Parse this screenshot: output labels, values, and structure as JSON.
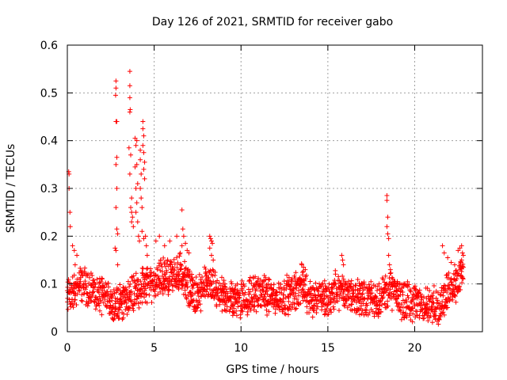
{
  "chart_data": {
    "type": "scatter",
    "title": "Day 126 of 2021, SRMTID for receiver gabo",
    "xlabel": "GPS time / hours",
    "ylabel": "SRMTID / TECUs",
    "xlim": [
      0,
      23.9
    ],
    "ylim": [
      0,
      0.6
    ],
    "x_ticks": [
      0,
      5,
      10,
      15,
      20
    ],
    "y_ticks": [
      0,
      0.1,
      0.2,
      0.3,
      0.4,
      0.5,
      0.6
    ],
    "x_tick_labels": [
      "0",
      "5",
      "10",
      "15",
      "20"
    ],
    "y_tick_labels": [
      "0",
      "0.1",
      "0.2",
      "0.3",
      "0.4",
      "0.5",
      "0.6"
    ],
    "grid": true,
    "marker": "plus",
    "color": "#ff0000",
    "series": [
      {
        "name": "SRMTID",
        "baseline_profile": {
          "x": [
            0,
            0.5,
            1,
            2,
            3,
            3.5,
            4,
            4.5,
            5,
            5.5,
            6,
            6.5,
            7,
            7.5,
            8,
            9,
            10,
            11,
            12,
            13,
            13.5,
            14,
            15,
            15.5,
            16,
            17,
            18,
            18.5,
            19,
            20,
            21,
            21.5,
            22,
            22.8
          ],
          "y": [
            0.07,
            0.09,
            0.1,
            0.07,
            0.06,
            0.07,
            0.09,
            0.1,
            0.1,
            0.12,
            0.11,
            0.13,
            0.09,
            0.07,
            0.1,
            0.07,
            0.07,
            0.08,
            0.07,
            0.08,
            0.1,
            0.07,
            0.07,
            0.09,
            0.08,
            0.07,
            0.07,
            0.09,
            0.07,
            0.06,
            0.05,
            0.06,
            0.09,
            0.12
          ]
        },
        "spikes": [
          {
            "x": 0.08,
            "y": 0.335
          },
          {
            "x": 0.1,
            "y": 0.33
          },
          {
            "x": 0.1,
            "y": 0.3
          },
          {
            "x": 0.15,
            "y": 0.25
          },
          {
            "x": 0.17,
            "y": 0.22
          },
          {
            "x": 0.3,
            "y": 0.18
          },
          {
            "x": 0.4,
            "y": 0.17
          },
          {
            "x": 0.55,
            "y": 0.16
          },
          {
            "x": 0.45,
            "y": 0.14
          },
          {
            "x": 2.8,
            "y": 0.525
          },
          {
            "x": 2.8,
            "y": 0.51
          },
          {
            "x": 2.78,
            "y": 0.495
          },
          {
            "x": 2.8,
            "y": 0.44
          },
          {
            "x": 2.85,
            "y": 0.44
          },
          {
            "x": 2.85,
            "y": 0.365
          },
          {
            "x": 2.8,
            "y": 0.35
          },
          {
            "x": 2.85,
            "y": 0.3
          },
          {
            "x": 2.8,
            "y": 0.26
          },
          {
            "x": 2.85,
            "y": 0.215
          },
          {
            "x": 2.9,
            "y": 0.205
          },
          {
            "x": 2.75,
            "y": 0.175
          },
          {
            "x": 2.8,
            "y": 0.17
          },
          {
            "x": 2.9,
            "y": 0.14
          },
          {
            "x": 3.6,
            "y": 0.545
          },
          {
            "x": 3.6,
            "y": 0.515
          },
          {
            "x": 3.6,
            "y": 0.49
          },
          {
            "x": 3.62,
            "y": 0.465
          },
          {
            "x": 3.6,
            "y": 0.46
          },
          {
            "x": 3.55,
            "y": 0.385
          },
          {
            "x": 3.65,
            "y": 0.37
          },
          {
            "x": 3.6,
            "y": 0.33
          },
          {
            "x": 3.7,
            "y": 0.28
          },
          {
            "x": 3.65,
            "y": 0.26
          },
          {
            "x": 3.7,
            "y": 0.25
          },
          {
            "x": 3.75,
            "y": 0.24
          },
          {
            "x": 3.7,
            "y": 0.23
          },
          {
            "x": 3.8,
            "y": 0.22
          },
          {
            "x": 3.9,
            "y": 0.405
          },
          {
            "x": 3.95,
            "y": 0.39
          },
          {
            "x": 4.0,
            "y": 0.4
          },
          {
            "x": 3.9,
            "y": 0.345
          },
          {
            "x": 4.0,
            "y": 0.35
          },
          {
            "x": 3.95,
            "y": 0.3
          },
          {
            "x": 4.05,
            "y": 0.31
          },
          {
            "x": 4.0,
            "y": 0.27
          },
          {
            "x": 3.95,
            "y": 0.25
          },
          {
            "x": 4.05,
            "y": 0.23
          },
          {
            "x": 4.1,
            "y": 0.2
          },
          {
            "x": 4.15,
            "y": 0.19
          },
          {
            "x": 4.2,
            "y": 0.38
          },
          {
            "x": 4.2,
            "y": 0.36
          },
          {
            "x": 4.25,
            "y": 0.33
          },
          {
            "x": 4.2,
            "y": 0.3
          },
          {
            "x": 4.25,
            "y": 0.28
          },
          {
            "x": 4.3,
            "y": 0.26
          },
          {
            "x": 4.35,
            "y": 0.44
          },
          {
            "x": 4.35,
            "y": 0.425
          },
          {
            "x": 4.4,
            "y": 0.41
          },
          {
            "x": 4.35,
            "y": 0.39
          },
          {
            "x": 4.4,
            "y": 0.375
          },
          {
            "x": 4.45,
            "y": 0.355
          },
          {
            "x": 4.4,
            "y": 0.34
          },
          {
            "x": 4.45,
            "y": 0.32
          },
          {
            "x": 4.5,
            "y": 0.2
          },
          {
            "x": 4.55,
            "y": 0.18
          },
          {
            "x": 4.6,
            "y": 0.16
          },
          {
            "x": 4.3,
            "y": 0.21
          },
          {
            "x": 4.4,
            "y": 0.195
          },
          {
            "x": 5.1,
            "y": 0.19
          },
          {
            "x": 5.3,
            "y": 0.2
          },
          {
            "x": 5.6,
            "y": 0.18
          },
          {
            "x": 5.9,
            "y": 0.19
          },
          {
            "x": 6.3,
            "y": 0.2
          },
          {
            "x": 6.6,
            "y": 0.255
          },
          {
            "x": 6.65,
            "y": 0.215
          },
          {
            "x": 6.7,
            "y": 0.2
          },
          {
            "x": 6.8,
            "y": 0.185
          },
          {
            "x": 6.6,
            "y": 0.18
          },
          {
            "x": 6.9,
            "y": 0.17
          },
          {
            "x": 7.0,
            "y": 0.165
          },
          {
            "x": 8.2,
            "y": 0.2
          },
          {
            "x": 8.25,
            "y": 0.195
          },
          {
            "x": 8.3,
            "y": 0.19
          },
          {
            "x": 8.35,
            "y": 0.185
          },
          {
            "x": 8.2,
            "y": 0.175
          },
          {
            "x": 8.3,
            "y": 0.16
          },
          {
            "x": 8.4,
            "y": 0.15
          },
          {
            "x": 13.5,
            "y": 0.14
          },
          {
            "x": 13.6,
            "y": 0.135
          },
          {
            "x": 13.7,
            "y": 0.13
          },
          {
            "x": 15.8,
            "y": 0.16
          },
          {
            "x": 15.85,
            "y": 0.15
          },
          {
            "x": 15.9,
            "y": 0.14
          },
          {
            "x": 18.4,
            "y": 0.285
          },
          {
            "x": 18.4,
            "y": 0.275
          },
          {
            "x": 18.45,
            "y": 0.24
          },
          {
            "x": 18.4,
            "y": 0.22
          },
          {
            "x": 18.45,
            "y": 0.205
          },
          {
            "x": 18.5,
            "y": 0.195
          },
          {
            "x": 18.5,
            "y": 0.16
          },
          {
            "x": 18.55,
            "y": 0.14
          },
          {
            "x": 18.6,
            "y": 0.13
          },
          {
            "x": 21.6,
            "y": 0.18
          },
          {
            "x": 21.7,
            "y": 0.165
          },
          {
            "x": 21.9,
            "y": 0.155
          },
          {
            "x": 22.1,
            "y": 0.145
          },
          {
            "x": 22.3,
            "y": 0.14
          },
          {
            "x": 22.5,
            "y": 0.17
          },
          {
            "x": 22.6,
            "y": 0.175
          },
          {
            "x": 22.7,
            "y": 0.18
          },
          {
            "x": 22.75,
            "y": 0.165
          },
          {
            "x": 22.8,
            "y": 0.16
          },
          {
            "x": 22.7,
            "y": 0.15
          },
          {
            "x": 22.65,
            "y": 0.145
          },
          {
            "x": 22.8,
            "y": 0.135
          },
          {
            "x": 22.6,
            "y": 0.13
          }
        ]
      }
    ]
  }
}
